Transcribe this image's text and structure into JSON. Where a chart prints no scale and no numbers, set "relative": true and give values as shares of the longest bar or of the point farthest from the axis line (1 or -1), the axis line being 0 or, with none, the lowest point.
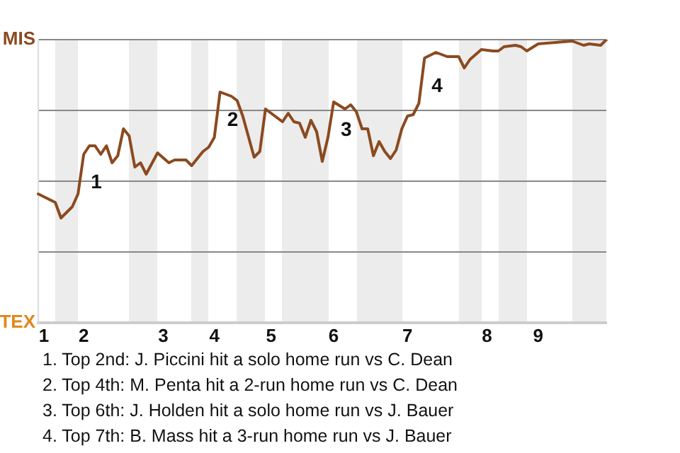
{
  "chart_data": {
    "type": "line",
    "relative": true,
    "categories": [
      null,
      "1",
      null,
      null,
      null,
      null,
      null,
      null,
      "2",
      null,
      null,
      null,
      null,
      null,
      null,
      null,
      null,
      null,
      null,
      null,
      null,
      null,
      "3",
      null,
      null,
      null,
      null,
      null,
      null,
      null,
      null,
      "4",
      null,
      null,
      null,
      null,
      null,
      null,
      null,
      null,
      null,
      "5",
      null,
      null,
      null,
      null,
      null,
      null,
      null,
      null,
      null,
      null,
      "6",
      null,
      null,
      null,
      null,
      null,
      null,
      null,
      null,
      null,
      null,
      null,
      null,
      "7",
      null,
      null,
      null,
      null,
      null,
      null,
      null,
      null,
      null,
      null,
      null,
      null,
      null,
      "8",
      null,
      null,
      null,
      null,
      null,
      null,
      null,
      null,
      "9",
      null,
      null,
      null,
      null,
      null,
      null,
      null,
      null,
      null,
      null,
      null,
      null
    ],
    "series": [
      {
        "color": "#8b4a1f",
        "values": [
          0.455,
          null,
          null,
          0.425,
          0.37,
          null,
          0.41,
          0.455,
          0.595,
          0.625,
          0.625,
          0.595,
          0.625,
          0.565,
          0.59,
          0.685,
          0.66,
          0.55,
          0.565,
          0.525,
          null,
          0.6,
          null,
          0.565,
          0.575,
          null,
          0.575,
          0.555,
          null,
          0.605,
          0.62,
          0.655,
          0.815,
          null,
          0.8,
          0.785,
          0.73,
          null,
          0.585,
          0.605,
          0.755,
          null,
          null,
          0.71,
          0.74,
          0.71,
          0.705,
          0.655,
          0.715,
          0.675,
          0.57,
          0.655,
          0.78,
          null,
          0.755,
          0.77,
          0.745,
          0.685,
          0.685,
          0.59,
          0.64,
          0.605,
          0.58,
          0.61,
          0.685,
          0.73,
          0.735,
          0.775,
          0.935,
          null,
          0.955,
          null,
          0.94,
          null,
          0.94,
          0.9,
          0.93,
          null,
          0.965,
          null,
          0.96,
          0.96,
          0.975,
          null,
          0.98,
          0.975,
          0.96,
          null,
          0.985,
          null,
          null,
          0.99,
          null,
          null,
          0.995,
          null,
          0.98,
          0.985,
          null,
          0.98,
          1
        ]
      }
    ],
    "grid": "y",
    "marker": "none",
    "line_style": "solid",
    "annotations": [
      "MIS",
      "TEX",
      {
        "text": "1",
        "y": 0.595
      },
      {
        "text": "2",
        "y": 0.815
      },
      {
        "text": "3",
        "y": 0.78
      },
      {
        "text": "4",
        "y": 0.935
      },
      "1. Top 2nd: J. Piccini hit a solo home run vs C. Dean",
      "2. Top 4th: M. Penta hit a 2-run home run vs C. Dean",
      "3. Top 6th: J. Holden hit a solo home run vs J. Bauer",
      "4. Top 7th: B. Mass hit a 3-run home run vs J. Bauer"
    ]
  }
}
